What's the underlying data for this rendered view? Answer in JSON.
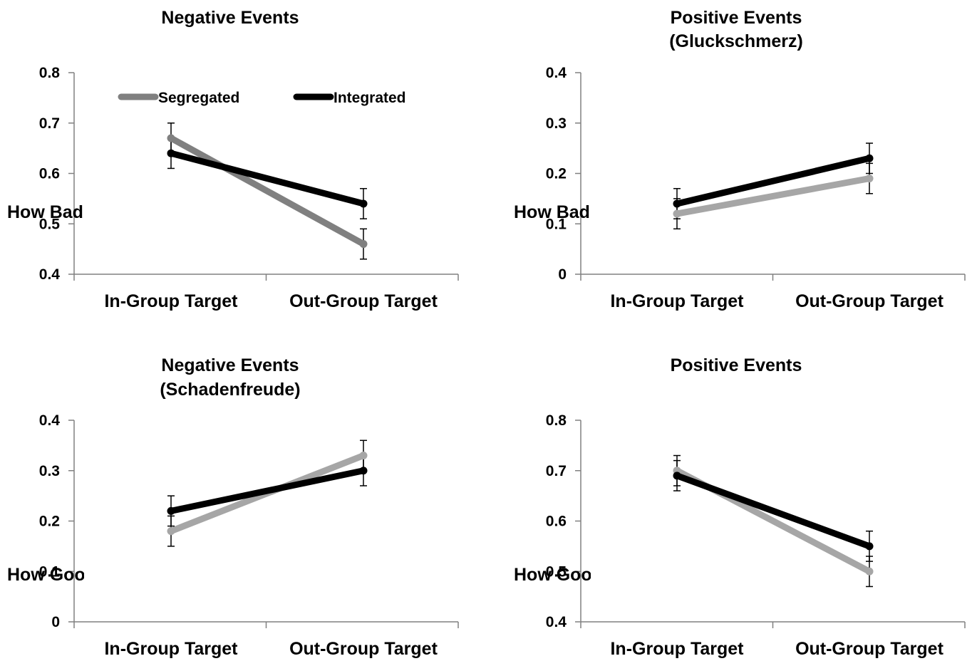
{
  "chart_data": [
    {
      "type": "line",
      "title_lines": [
        "Negative Events"
      ],
      "ylabel": "How Bad",
      "categories": [
        "In-Group Target",
        "Out-Group Target"
      ],
      "ylim": [
        0.4,
        0.8
      ],
      "yticks": [
        "0.4",
        "0.5",
        "0.6",
        "0.7",
        "0.8"
      ],
      "yticks_values": [
        0.4,
        0.5,
        0.6,
        0.7,
        0.8
      ],
      "legend": "top",
      "series": [
        {
          "name": "Segregated",
          "color": "#808080",
          "values": [
            0.67,
            0.46
          ],
          "errors": [
            0.03,
            0.03
          ]
        },
        {
          "name": "Integrated",
          "color": "#000000",
          "values": [
            0.64,
            0.54
          ],
          "errors": [
            0.03,
            0.03
          ]
        }
      ]
    },
    {
      "type": "line",
      "title_lines": [
        "Positive Events",
        "(Gluckschmerz)"
      ],
      "ylabel": "How Bad",
      "categories": [
        "In-Group Target",
        "Out-Group Target"
      ],
      "ylim": [
        0,
        0.4
      ],
      "yticks": [
        "0",
        "0.1",
        "0.2",
        "0.3",
        "0.4"
      ],
      "yticks_values": [
        0,
        0.1,
        0.2,
        0.3,
        0.4
      ],
      "series": [
        {
          "color": "#a6a6a6",
          "values": [
            0.12,
            0.19
          ],
          "errors": [
            0.03,
            0.03
          ]
        },
        {
          "color": "#000000",
          "values": [
            0.14,
            0.23
          ],
          "errors": [
            0.03,
            0.03
          ]
        }
      ]
    },
    {
      "type": "line",
      "title_lines": [
        "Negative Events",
        "(Schadenfreude)"
      ],
      "ylabel": "How Good",
      "categories": [
        "In-Group Target",
        "Out-Group Target"
      ],
      "ylim": [
        0,
        0.4
      ],
      "yticks": [
        "0",
        "0.1",
        "0.2",
        "0.3",
        "0.4"
      ],
      "yticks_values": [
        0,
        0.1,
        0.2,
        0.3,
        0.4
      ],
      "series": [
        {
          "color": "#a6a6a6",
          "values": [
            0.18,
            0.33
          ],
          "errors": [
            0.03,
            0.03
          ]
        },
        {
          "color": "#000000",
          "values": [
            0.22,
            0.3
          ],
          "errors": [
            0.03,
            0.03
          ]
        }
      ]
    },
    {
      "type": "line",
      "title_lines": [
        "Positive Events"
      ],
      "ylabel": "How Good",
      "categories": [
        "In-Group Target",
        "Out-Group Target"
      ],
      "ylim": [
        0.4,
        0.8
      ],
      "yticks": [
        "0.4",
        "0.5",
        "0.6",
        "0.7",
        "0.8"
      ],
      "yticks_values": [
        0.4,
        0.5,
        0.6,
        0.7,
        0.8
      ],
      "series": [
        {
          "color": "#a6a6a6",
          "values": [
            0.7,
            0.5
          ],
          "errors": [
            0.03,
            0.03
          ]
        },
        {
          "color": "#000000",
          "values": [
            0.69,
            0.55
          ],
          "errors": [
            0.03,
            0.03
          ]
        }
      ]
    }
  ]
}
